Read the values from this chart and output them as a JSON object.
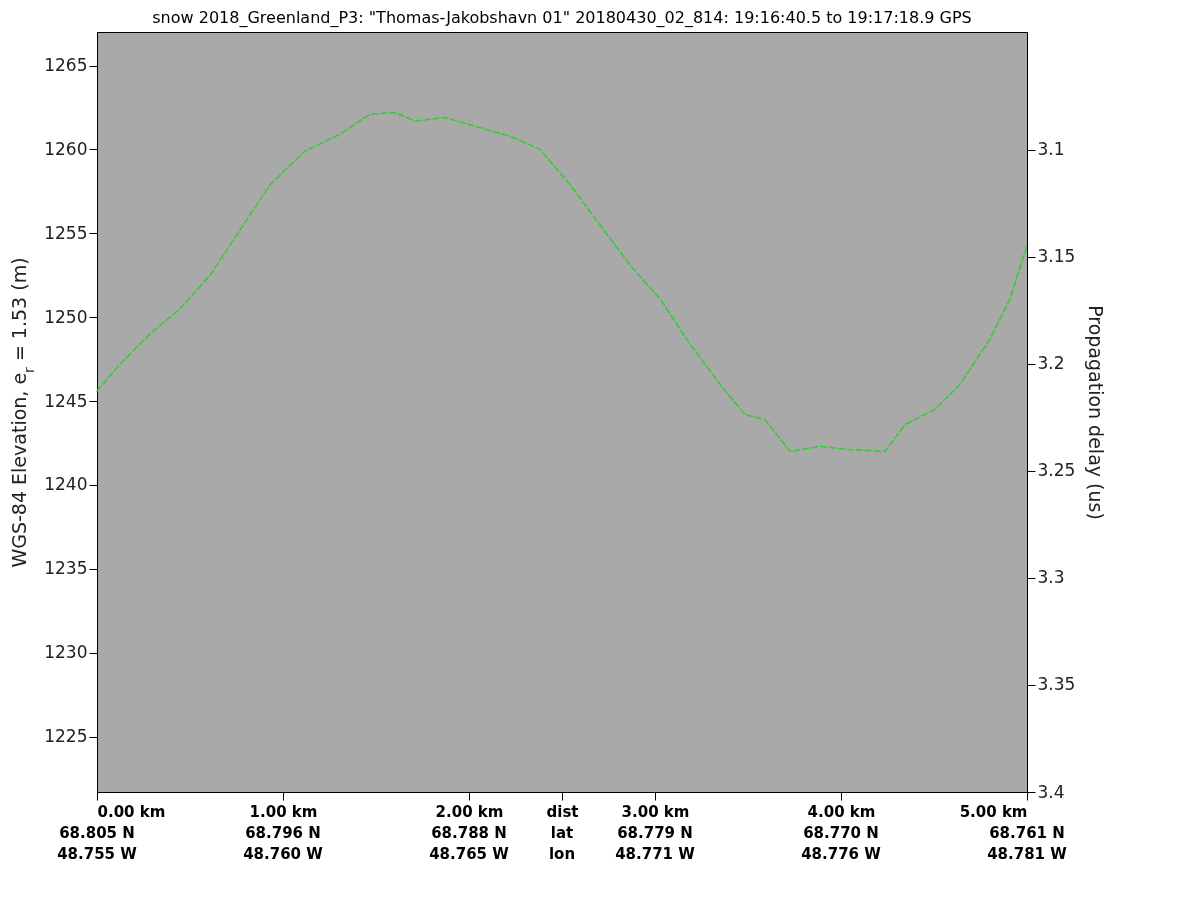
{
  "chart_data": {
    "type": "line",
    "title": "snow 2018_Greenland_P3: \"Thomas-Jakobshavn 01\"  20180430_02_814: 19:16:40.5 to 19:17:18.9 GPS",
    "ylabel": "WGS-84 Elevation, e$_{r}$ = 1.53 (m)",
    "y2label": "Propagation delay (us)",
    "x": [
      0,
      0.124,
      0.285,
      0.446,
      0.608,
      0.769,
      0.93,
      1.118,
      1.306,
      1.468,
      1.602,
      1.71,
      1.871,
      2.059,
      2.22,
      2.382,
      2.543,
      2.704,
      2.866,
      3.027,
      3.188,
      3.349,
      3.484,
      3.591,
      3.726,
      3.887,
      4.048,
      4.237,
      4.344,
      4.505,
      4.64,
      4.801,
      4.909,
      5.0
    ],
    "series": [
      {
        "color": "#33cc33",
        "values": [
          1245.6,
          1247.2,
          1249.0,
          1250.5,
          1252.5,
          1255.2,
          1257.9,
          1259.9,
          1260.9,
          1262.1,
          1262.2,
          1261.7,
          1261.9,
          1261.3,
          1260.8,
          1260.0,
          1257.9,
          1255.5,
          1253.1,
          1251.1,
          1248.4,
          1246.0,
          1244.2,
          1243.9,
          1242.0,
          1242.3,
          1242.1,
          1242.0,
          1243.6,
          1244.5,
          1246.0,
          1248.7,
          1251.1,
          1254.3
        ]
      }
    ],
    "line_style": "dashed",
    "marker": "none",
    "grid": false,
    "xlim": [
      0,
      5
    ],
    "xticks": [
      {
        "value": 0,
        "label": "0.00 km"
      },
      {
        "value": 1,
        "label": "1.00 km"
      },
      {
        "value": 2,
        "label": "2.00 km"
      },
      {
        "value": 2.5,
        "label": "dist"
      },
      {
        "value": 3,
        "label": "3.00 km"
      },
      {
        "value": 4,
        "label": "4.00 km"
      },
      {
        "value": 5,
        "label": "5.00 km"
      }
    ],
    "annotations": [
      "68.805 N\n48.755 W",
      "68.796 N\n48.760 W",
      "68.788 N\n48.765 W",
      "lat\nlon",
      "68.779 N\n48.771 W",
      "68.770 N\n48.776 W",
      "68.761 N\n48.781 W"
    ],
    "ylim": [
      1221.7,
      1267.0
    ],
    "yticks": [
      1225,
      1230,
      1235,
      1240,
      1245,
      1250,
      1255,
      1260,
      1265
    ],
    "y2lim": [
      3.4,
      3.045
    ],
    "y2ticks": [
      3.1,
      3.15,
      3.2,
      3.25,
      3.3,
      3.35,
      3.4
    ]
  }
}
